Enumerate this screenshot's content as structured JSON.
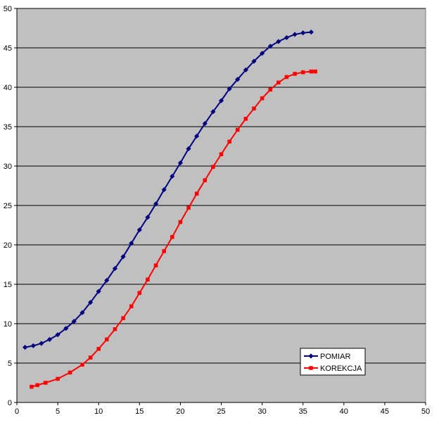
{
  "chart_data": {
    "type": "line",
    "title": "",
    "xlabel": "",
    "ylabel": "",
    "xlim": [
      0,
      50
    ],
    "ylim": [
      0,
      50
    ],
    "xticks": [
      "0",
      "5",
      "10",
      "15",
      "20",
      "25",
      "30",
      "35",
      "40",
      "45",
      "50"
    ],
    "yticks": [
      "0",
      "5",
      "10",
      "15",
      "20",
      "25",
      "30",
      "35",
      "40",
      "45",
      "50"
    ],
    "grid": "horizontal",
    "legend_position": "bottom-right",
    "plot_background": "#c0c0c0",
    "series": [
      {
        "name": "POMIAR",
        "color": "#000080",
        "marker": "diamond",
        "points": [
          [
            1.0,
            7.0
          ],
          [
            2.0,
            7.2
          ],
          [
            3.0,
            7.5
          ],
          [
            4.0,
            8.0
          ],
          [
            5.0,
            8.6
          ],
          [
            6.0,
            9.4
          ],
          [
            7.0,
            10.3
          ],
          [
            8.0,
            11.4
          ],
          [
            9.0,
            12.7
          ],
          [
            10.0,
            14.1
          ],
          [
            11.0,
            15.5
          ],
          [
            12.0,
            17.0
          ],
          [
            13.0,
            18.5
          ],
          [
            14.0,
            20.2
          ],
          [
            15.0,
            21.9
          ],
          [
            16.0,
            23.5
          ],
          [
            17.0,
            25.2
          ],
          [
            18.0,
            27.0
          ],
          [
            19.0,
            28.7
          ],
          [
            20.0,
            30.4
          ],
          [
            21.0,
            32.2
          ],
          [
            22.0,
            33.8
          ],
          [
            23.0,
            35.4
          ],
          [
            24.0,
            36.9
          ],
          [
            25.0,
            38.3
          ],
          [
            26.0,
            39.8
          ],
          [
            27.0,
            41.0
          ],
          [
            28.0,
            42.2
          ],
          [
            29.0,
            43.3
          ],
          [
            30.0,
            44.3
          ],
          [
            31.0,
            45.2
          ],
          [
            32.0,
            45.8
          ],
          [
            33.0,
            46.3
          ],
          [
            34.0,
            46.7
          ],
          [
            35.0,
            46.9
          ],
          [
            36.0,
            47.0
          ]
        ]
      },
      {
        "name": "KOREKCJA",
        "color": "#ff0000",
        "marker": "square",
        "points": [
          [
            1.8,
            2.0
          ],
          [
            2.5,
            2.2
          ],
          [
            3.5,
            2.5
          ],
          [
            5.0,
            3.0
          ],
          [
            6.5,
            3.8
          ],
          [
            8.0,
            4.8
          ],
          [
            9.0,
            5.7
          ],
          [
            10.0,
            6.8
          ],
          [
            11.0,
            8.0
          ],
          [
            12.0,
            9.3
          ],
          [
            13.0,
            10.7
          ],
          [
            14.0,
            12.2
          ],
          [
            15.0,
            13.9
          ],
          [
            16.0,
            15.6
          ],
          [
            17.0,
            17.4
          ],
          [
            18.0,
            19.2
          ],
          [
            19.0,
            21.0
          ],
          [
            20.0,
            22.9
          ],
          [
            21.0,
            24.7
          ],
          [
            22.0,
            26.5
          ],
          [
            23.0,
            28.2
          ],
          [
            24.0,
            29.9
          ],
          [
            25.0,
            31.5
          ],
          [
            26.0,
            33.1
          ],
          [
            27.0,
            34.6
          ],
          [
            28.0,
            36.0
          ],
          [
            29.0,
            37.3
          ],
          [
            30.0,
            38.6
          ],
          [
            31.0,
            39.7
          ],
          [
            32.0,
            40.6
          ],
          [
            33.0,
            41.3
          ],
          [
            34.0,
            41.7
          ],
          [
            35.0,
            41.9
          ],
          [
            36.0,
            42.0
          ],
          [
            36.5,
            42.0
          ]
        ]
      }
    ]
  }
}
